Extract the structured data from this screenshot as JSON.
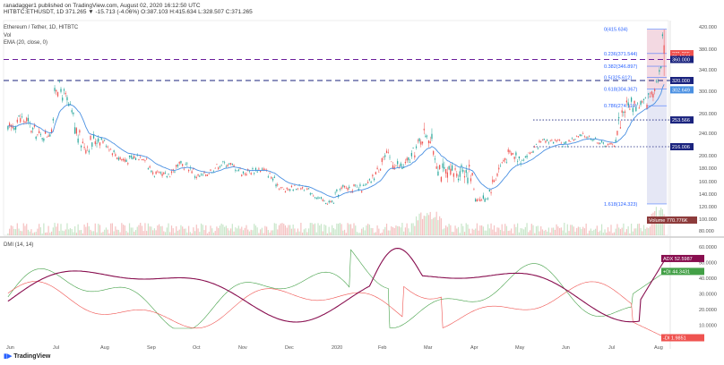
{
  "header": {
    "text": "ranadagger1 published on TradingView.com, August 02, 2020 16:12:50 UTC",
    "symbol_line": "HITBTC:ETHUSDT, 1D 371.265 ▼ -15.713 (-4.06%) O:387.103 H:415.634 L:328.507 C:371.265"
  },
  "legend": {
    "title": "Ethereum / Tether, 1D, HITBTC",
    "vol": "Vol",
    "ema": "EMA (20, close, 0)",
    "dmi": "DMI (14, 14)"
  },
  "footer": {
    "brand": "TradingView"
  },
  "colors": {
    "up": "#26a69a",
    "down": "#ef5350",
    "ema": "#4a90e2",
    "adx": "#880e4f",
    "plus_di": "#43a047",
    "minus_di": "#ef5350",
    "level": "#1a237e",
    "fib": "#2962ff"
  },
  "chart_data": [
    {
      "type": "candlestick",
      "ylim": [
        80,
        420
      ],
      "x_ticks": [
        "Jun",
        "Jul",
        "Aug",
        "Sep",
        "Oct",
        "Nov",
        "Dec",
        "2020",
        "Feb",
        "Mar",
        "Apr",
        "May",
        "Jun",
        "Jul",
        "Aug"
      ],
      "y_ticks": [
        "420.000",
        "380.000",
        "340.000",
        "300.000",
        "260.000",
        "240.000",
        "200.000",
        "180.000",
        "160.000",
        "140.000",
        "120.000",
        "100.000",
        "80.000"
      ],
      "price_labels": [
        {
          "label": "371.265",
          "value": 371.265,
          "color": "#ef5350"
        },
        {
          "label": "01:47:11",
          "value": 365.5,
          "color": "#ef5350"
        },
        {
          "label": "360.000",
          "value": 360.0,
          "color": "#1a237e"
        },
        {
          "label": "320.000",
          "value": 320.0,
          "color": "#1a237e"
        },
        {
          "label": "302.649",
          "value": 302.649,
          "color": "#4a90e2"
        },
        {
          "label": "253.566",
          "value": 253.566,
          "color": "#1a237e"
        },
        {
          "label": "216.006",
          "value": 216.006,
          "color": "#1a237e"
        }
      ],
      "volume_label": "770.776K",
      "volume_label_text": "Volume",
      "horizontal_levels": [
        {
          "value": 360.0,
          "style": "dashed",
          "color": "#6a1b9a"
        },
        {
          "value": 320.0,
          "style": "dashed",
          "color": "#1a237e"
        },
        {
          "value": 253.566,
          "style": "dotted",
          "color": "#1a237e"
        },
        {
          "value": 216.006,
          "style": "dotted",
          "color": "#1a237e"
        }
      ],
      "fibonacci": [
        {
          "label": "0(415.634)",
          "value": 415.634
        },
        {
          "label": "0.236(371.544)",
          "value": 371.544
        },
        {
          "label": "0.382(346.897)",
          "value": 346.897
        },
        {
          "label": "0.5(325.612)",
          "value": 325.612
        },
        {
          "label": "0.618(304.367)",
          "value": 304.367
        },
        {
          "label": "0.786(274.119)",
          "value": 274.119
        },
        {
          "label": "1.618(124.323)",
          "value": 124.323
        }
      ],
      "ohlc_monthly_anchor": [
        [
          "Jun 2019",
          240,
          270,
          200,
          250
        ],
        [
          "Jul 2019",
          290,
          330,
          200,
          215
        ],
        [
          "Aug 2019",
          220,
          240,
          180,
          185
        ],
        [
          "Sep 2019",
          180,
          225,
          165,
          172
        ],
        [
          "Oct 2019",
          175,
          200,
          155,
          182
        ],
        [
          "Nov 2019",
          182,
          190,
          140,
          152
        ],
        [
          "Dec 2019",
          150,
          155,
          118,
          130
        ],
        [
          "Jan 2020",
          130,
          185,
          125,
          180
        ],
        [
          "Feb 2020",
          180,
          285,
          180,
          225
        ],
        [
          "Mar 2020",
          225,
          245,
          95,
          135
        ],
        [
          "Apr 2020",
          135,
          225,
          130,
          205
        ],
        [
          "May 2020",
          205,
          230,
          180,
          230
        ],
        [
          "Jun 2020",
          230,
          255,
          215,
          225
        ],
        [
          "Jul 2020",
          225,
          345,
          220,
          345
        ],
        [
          "Aug 2020",
          387.103,
          415.634,
          328.507,
          371.265
        ]
      ]
    },
    {
      "type": "line",
      "title": "DMI (14, 14)",
      "ylim": [
        0,
        70
      ],
      "y_ticks": [
        "60.0000",
        "50.0000",
        "40.0000",
        "30.0000",
        "20.0000",
        "10.0000"
      ],
      "series": [
        {
          "name": "ADX",
          "last": 52.5987,
          "last_label": "52.5987"
        },
        {
          "name": "+DI",
          "last": 44.3431,
          "last_label": "44.3431"
        },
        {
          "name": "-DI",
          "last": 1.9851,
          "last_label": "1.9851"
        }
      ]
    }
  ]
}
